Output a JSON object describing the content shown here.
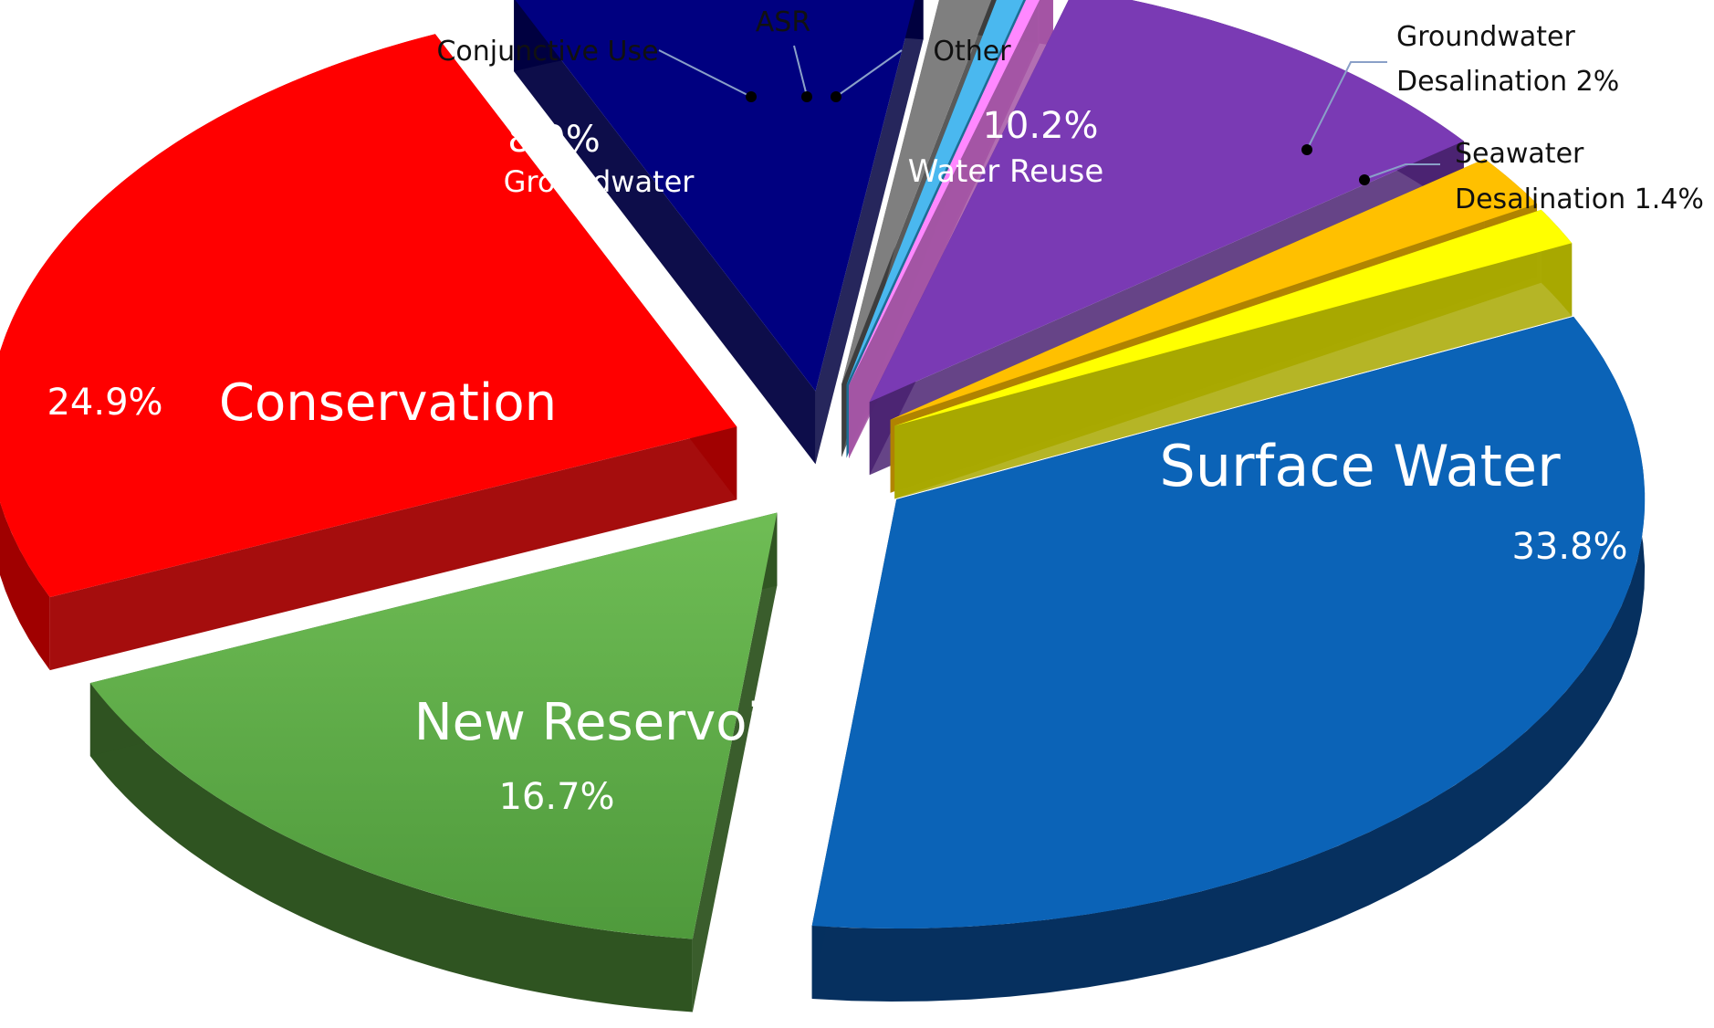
{
  "chart_data": {
    "type": "pie",
    "title": "",
    "slices": [
      {
        "name": "Surface Water",
        "value": 33.8,
        "label": "33.8%",
        "color": "#0b63b7",
        "side_color": "#06305f"
      },
      {
        "name": "New Reservoirs",
        "value": 16.7,
        "label": "16.7%",
        "color": "#62b04c",
        "side_color": "#2f5421"
      },
      {
        "name": "Conservation",
        "value": 24.9,
        "label": "24.9%",
        "color": "#ff0000",
        "side_color": "#a00000"
      },
      {
        "name": "Groundwater",
        "value": 8.9,
        "label": "8.9%",
        "color": "#000080",
        "side_color": "#000040"
      },
      {
        "name": "Conjunctive Use",
        "value": 1.2,
        "label": "",
        "color": "#7f7f7f",
        "side_color": "#3d3d3d"
      },
      {
        "name": "ASR",
        "value": 0.6,
        "label": "",
        "color": "#4ab8ef",
        "side_color": "#1c6e95"
      },
      {
        "name": "Other",
        "value": 0.3,
        "label": "",
        "color": "#ff88ff",
        "side_color": "#a455a4"
      },
      {
        "name": "Water Reuse",
        "value": 10.2,
        "label": "10.2%",
        "color": "#7a3ab4",
        "side_color": "#4b2372"
      },
      {
        "name": "Groundwater Desalination",
        "value": 2,
        "label": "2%",
        "color": "#ffc000",
        "side_color": "#b08400"
      },
      {
        "name": "Seawater Desalination",
        "value": 1.4,
        "label": "1.4%",
        "color": "#ffff00",
        "side_color": "#a8a800"
      }
    ],
    "labels": {
      "surface_water_name": "Surface Water",
      "surface_water_pct": "33.8%",
      "new_reservoirs_name": "New Reservoirs",
      "new_reservoirs_pct": "16.7%",
      "conservation_name": "Conservation",
      "conservation_pct": "24.9%",
      "groundwater_name": "Groundwater",
      "groundwater_pct": "8.9%",
      "water_reuse_name": "Water Reuse",
      "water_reuse_pct": "10.2%",
      "conjunctive_use": "Conjunctive Use",
      "asr": "ASR",
      "other": "Other",
      "gw_desal_line1": "Groundwater",
      "gw_desal_line2": "Desalination 2%",
      "sw_desal_line1": "Seawater",
      "sw_desal_line2": "Desalination 1.4%"
    },
    "legend": "none"
  }
}
